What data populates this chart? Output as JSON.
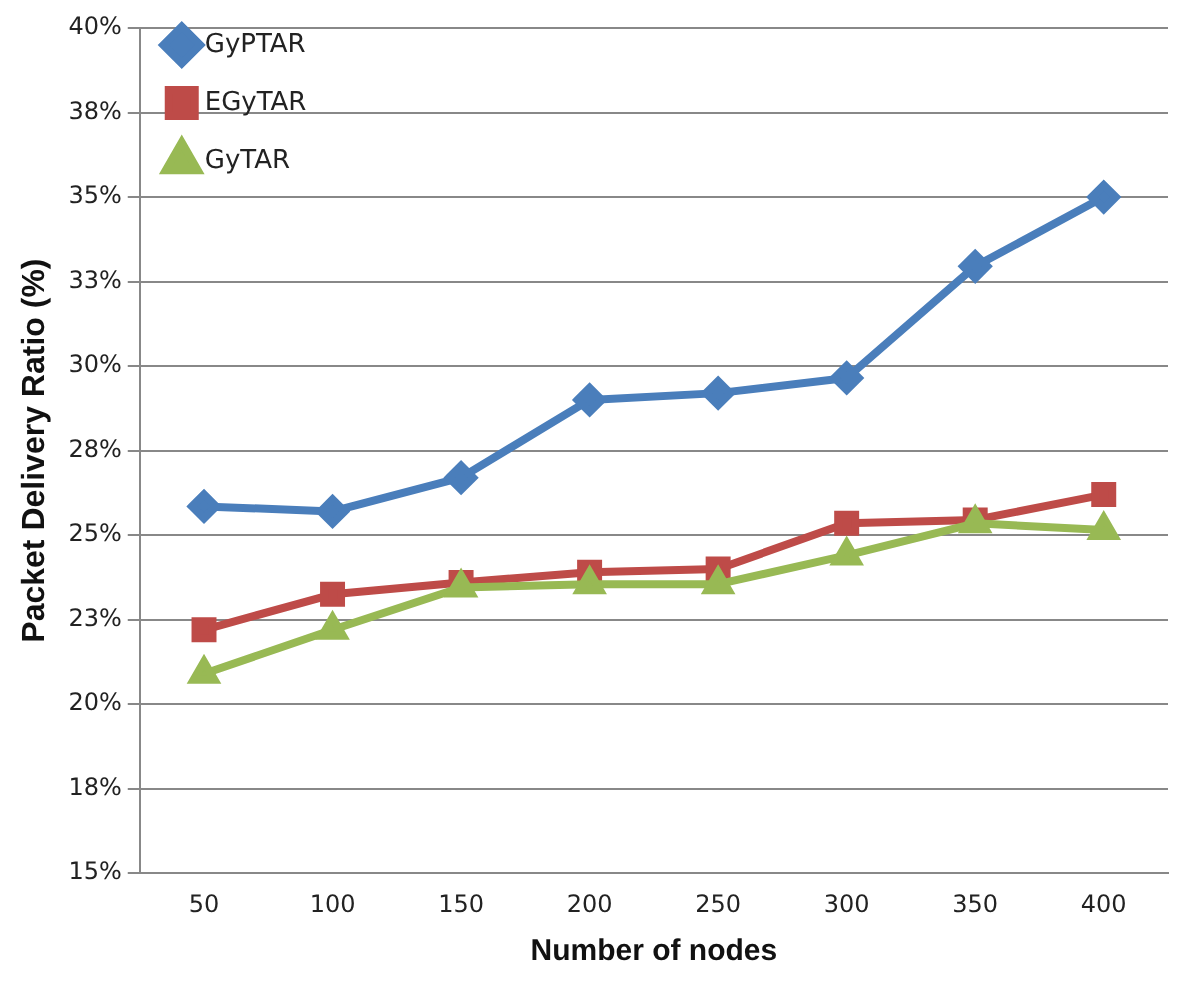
{
  "chart_data": {
    "type": "line",
    "xlabel": "Number of nodes",
    "ylabel": "Packet Delivery Ratio (%)",
    "categories": [
      "50",
      "100",
      "150",
      "200",
      "250",
      "300",
      "350",
      "400"
    ],
    "series": [
      {
        "name": "GyPTAR",
        "color": "#4a7ebb",
        "marker": "diamond",
        "values": [
          25.85,
          25.7,
          26.7,
          29.0,
          29.2,
          29.65,
          32.95,
          35.0
        ]
      },
      {
        "name": "EGyTAR",
        "color": "#be4b48",
        "marker": "square",
        "values": [
          22.2,
          23.25,
          23.6,
          23.9,
          24.0,
          25.35,
          25.45,
          26.2
        ]
      },
      {
        "name": "GyTAR",
        "color": "#98b954",
        "marker": "triangle",
        "values": [
          20.9,
          22.2,
          23.45,
          23.55,
          23.55,
          24.4,
          25.35,
          25.15
        ]
      }
    ],
    "ylim": [
      15,
      40
    ],
    "yticks": [
      {
        "value": 15,
        "label": "15%"
      },
      {
        "value": 17.5,
        "label": "18%"
      },
      {
        "value": 20,
        "label": "20%"
      },
      {
        "value": 22.5,
        "label": "23%"
      },
      {
        "value": 25,
        "label": "25%"
      },
      {
        "value": 27.5,
        "label": "28%"
      },
      {
        "value": 30,
        "label": "30%"
      },
      {
        "value": 32.5,
        "label": "33%"
      },
      {
        "value": 35,
        "label": "35%"
      },
      {
        "value": 37.5,
        "label": "38%"
      },
      {
        "value": 40,
        "label": "40%"
      }
    ],
    "grid": "y",
    "legend": "top left",
    "line_style": "solid"
  }
}
